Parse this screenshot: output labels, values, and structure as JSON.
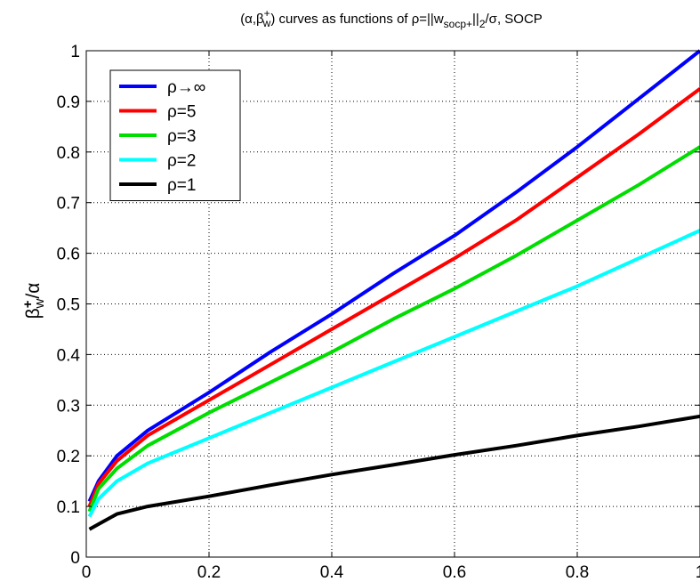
{
  "chart_data": {
    "type": "line",
    "title": {
      "prefix": "(α,β",
      "sup": "+",
      "sub": "w",
      "middle": ") curves as functions of ρ=||w",
      "sub2": "socp+",
      "middle2": "||",
      "sub3": "2",
      "suffix": "/σ, SOCP"
    },
    "xlabel": "",
    "ylabel": {
      "base": "β",
      "sup": "+",
      "sub": "w",
      "suffix": "/α"
    },
    "xlim": [
      0,
      1
    ],
    "ylim": [
      0,
      1
    ],
    "x_ticks": [
      "0",
      "0.2",
      "0.4",
      "0.6",
      "0.8",
      "1"
    ],
    "y_ticks": [
      "0",
      "0.1",
      "0.2",
      "0.3",
      "0.4",
      "0.5",
      "0.6",
      "0.7",
      "0.8",
      "0.9",
      "1"
    ],
    "grid": true,
    "legend_position": "top-left",
    "series": [
      {
        "name": "ρ→∞",
        "color": "#0000ff",
        "x": [
          0.005,
          0.02,
          0.05,
          0.1,
          0.2,
          0.3,
          0.4,
          0.5,
          0.6,
          0.7,
          0.8,
          0.9,
          1.0
        ],
        "y": [
          0.11,
          0.15,
          0.2,
          0.25,
          0.325,
          0.405,
          0.48,
          0.56,
          0.635,
          0.72,
          0.81,
          0.905,
          1.0
        ]
      },
      {
        "name": "ρ=5",
        "color": "#ff0000",
        "x": [
          0.005,
          0.02,
          0.05,
          0.1,
          0.2,
          0.3,
          0.4,
          0.5,
          0.6,
          0.7,
          0.8,
          0.9,
          1.0
        ],
        "y": [
          0.1,
          0.145,
          0.19,
          0.24,
          0.31,
          0.38,
          0.45,
          0.52,
          0.59,
          0.665,
          0.75,
          0.835,
          0.925
        ]
      },
      {
        "name": "ρ=3",
        "color": "#00dd00",
        "x": [
          0.005,
          0.02,
          0.05,
          0.1,
          0.2,
          0.3,
          0.4,
          0.5,
          0.6,
          0.7,
          0.8,
          0.9,
          1.0
        ],
        "y": [
          0.09,
          0.135,
          0.175,
          0.22,
          0.285,
          0.345,
          0.405,
          0.47,
          0.53,
          0.595,
          0.665,
          0.735,
          0.81
        ]
      },
      {
        "name": "ρ=2",
        "color": "#00ffff",
        "x": [
          0.005,
          0.02,
          0.05,
          0.1,
          0.2,
          0.3,
          0.4,
          0.5,
          0.6,
          0.7,
          0.8,
          0.9,
          1.0
        ],
        "y": [
          0.08,
          0.115,
          0.15,
          0.185,
          0.235,
          0.285,
          0.335,
          0.385,
          0.435,
          0.485,
          0.535,
          0.59,
          0.645
        ]
      },
      {
        "name": "ρ=1",
        "color": "#000000",
        "x": [
          0.005,
          0.02,
          0.05,
          0.1,
          0.2,
          0.3,
          0.4,
          0.5,
          0.6,
          0.7,
          0.8,
          0.9,
          1.0
        ],
        "y": [
          0.055,
          0.065,
          0.085,
          0.1,
          0.12,
          0.142,
          0.163,
          0.182,
          0.202,
          0.22,
          0.24,
          0.258,
          0.278
        ]
      }
    ]
  }
}
